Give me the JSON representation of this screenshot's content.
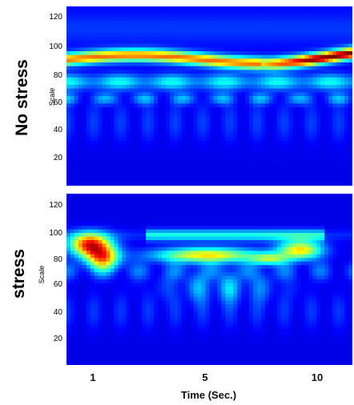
{
  "chart_data": [
    {
      "type": "heatmap",
      "panel_label": "No stress",
      "ylabel": "Scale",
      "yticks": [
        20,
        40,
        60,
        80,
        100,
        120
      ],
      "ylim": [
        0,
        128
      ],
      "xlim": [
        0,
        11
      ],
      "x_ticks": [
        1,
        5,
        10
      ],
      "features": [
        {
          "kind": "band",
          "scale": 90,
          "x_range": [
            0,
            11
          ],
          "intensity": 0.8
        },
        {
          "kind": "band",
          "scale": 95,
          "x_range": [
            8,
            11
          ],
          "intensity": 1.0
        },
        {
          "kind": "band",
          "scale": 73,
          "x_range": [
            0,
            11
          ],
          "intensity": 0.45
        },
        {
          "kind": "blob_row",
          "scale": 62,
          "intensity": 0.3
        }
      ]
    },
    {
      "type": "heatmap",
      "panel_label": "stress",
      "ylabel": "Scale",
      "yticks": [
        20,
        40,
        60,
        80,
        100,
        120
      ],
      "ylim": [
        0,
        128
      ],
      "xlim": [
        0,
        11
      ],
      "x_ticks": [
        1,
        5,
        10
      ],
      "features": [
        {
          "kind": "hotspot",
          "x": 1.2,
          "scale": 85,
          "intensity": 1.0
        },
        {
          "kind": "hotspot",
          "x": 5.5,
          "scale": 80,
          "intensity": 0.8
        },
        {
          "kind": "hotspot",
          "x": 9.2,
          "scale": 85,
          "intensity": 0.8
        },
        {
          "kind": "arc",
          "x_range": [
            3,
            9.5
          ],
          "scale": 97,
          "intensity": 0.5
        }
      ]
    }
  ],
  "xaxis": {
    "xlabel": "Time (Sec.)",
    "tick_labels": [
      "1",
      "5",
      "10"
    ]
  }
}
